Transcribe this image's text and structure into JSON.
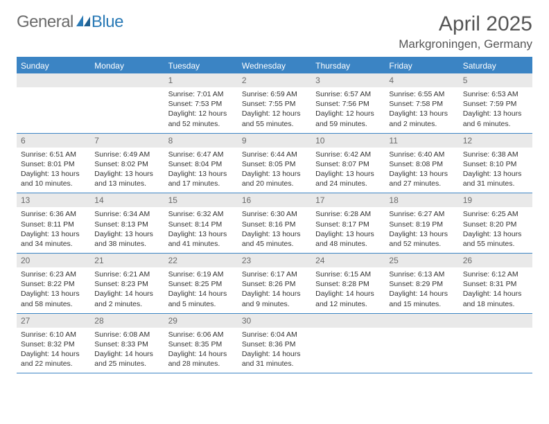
{
  "logo": {
    "text_general": "General",
    "text_blue": "Blue"
  },
  "header": {
    "month": "April 2025",
    "location": "Markgroningen, Germany"
  },
  "colors": {
    "header_blue": "#3b84c4",
    "daynum_bg": "#e9e9e9",
    "text": "#333333",
    "logo_blue": "#2a7ab6",
    "logo_gray": "#6a6a6a"
  },
  "weekdays": [
    "Sunday",
    "Monday",
    "Tuesday",
    "Wednesday",
    "Thursday",
    "Friday",
    "Saturday"
  ],
  "weeks": [
    [
      {
        "blank": true
      },
      {
        "blank": true
      },
      {
        "day": "1",
        "sunrise": "Sunrise: 7:01 AM",
        "sunset": "Sunset: 7:53 PM",
        "daylight1": "Daylight: 12 hours",
        "daylight2": "and 52 minutes."
      },
      {
        "day": "2",
        "sunrise": "Sunrise: 6:59 AM",
        "sunset": "Sunset: 7:55 PM",
        "daylight1": "Daylight: 12 hours",
        "daylight2": "and 55 minutes."
      },
      {
        "day": "3",
        "sunrise": "Sunrise: 6:57 AM",
        "sunset": "Sunset: 7:56 PM",
        "daylight1": "Daylight: 12 hours",
        "daylight2": "and 59 minutes."
      },
      {
        "day": "4",
        "sunrise": "Sunrise: 6:55 AM",
        "sunset": "Sunset: 7:58 PM",
        "daylight1": "Daylight: 13 hours",
        "daylight2": "and 2 minutes."
      },
      {
        "day": "5",
        "sunrise": "Sunrise: 6:53 AM",
        "sunset": "Sunset: 7:59 PM",
        "daylight1": "Daylight: 13 hours",
        "daylight2": "and 6 minutes."
      }
    ],
    [
      {
        "day": "6",
        "sunrise": "Sunrise: 6:51 AM",
        "sunset": "Sunset: 8:01 PM",
        "daylight1": "Daylight: 13 hours",
        "daylight2": "and 10 minutes."
      },
      {
        "day": "7",
        "sunrise": "Sunrise: 6:49 AM",
        "sunset": "Sunset: 8:02 PM",
        "daylight1": "Daylight: 13 hours",
        "daylight2": "and 13 minutes."
      },
      {
        "day": "8",
        "sunrise": "Sunrise: 6:47 AM",
        "sunset": "Sunset: 8:04 PM",
        "daylight1": "Daylight: 13 hours",
        "daylight2": "and 17 minutes."
      },
      {
        "day": "9",
        "sunrise": "Sunrise: 6:44 AM",
        "sunset": "Sunset: 8:05 PM",
        "daylight1": "Daylight: 13 hours",
        "daylight2": "and 20 minutes."
      },
      {
        "day": "10",
        "sunrise": "Sunrise: 6:42 AM",
        "sunset": "Sunset: 8:07 PM",
        "daylight1": "Daylight: 13 hours",
        "daylight2": "and 24 minutes."
      },
      {
        "day": "11",
        "sunrise": "Sunrise: 6:40 AM",
        "sunset": "Sunset: 8:08 PM",
        "daylight1": "Daylight: 13 hours",
        "daylight2": "and 27 minutes."
      },
      {
        "day": "12",
        "sunrise": "Sunrise: 6:38 AM",
        "sunset": "Sunset: 8:10 PM",
        "daylight1": "Daylight: 13 hours",
        "daylight2": "and 31 minutes."
      }
    ],
    [
      {
        "day": "13",
        "sunrise": "Sunrise: 6:36 AM",
        "sunset": "Sunset: 8:11 PM",
        "daylight1": "Daylight: 13 hours",
        "daylight2": "and 34 minutes."
      },
      {
        "day": "14",
        "sunrise": "Sunrise: 6:34 AM",
        "sunset": "Sunset: 8:13 PM",
        "daylight1": "Daylight: 13 hours",
        "daylight2": "and 38 minutes."
      },
      {
        "day": "15",
        "sunrise": "Sunrise: 6:32 AM",
        "sunset": "Sunset: 8:14 PM",
        "daylight1": "Daylight: 13 hours",
        "daylight2": "and 41 minutes."
      },
      {
        "day": "16",
        "sunrise": "Sunrise: 6:30 AM",
        "sunset": "Sunset: 8:16 PM",
        "daylight1": "Daylight: 13 hours",
        "daylight2": "and 45 minutes."
      },
      {
        "day": "17",
        "sunrise": "Sunrise: 6:28 AM",
        "sunset": "Sunset: 8:17 PM",
        "daylight1": "Daylight: 13 hours",
        "daylight2": "and 48 minutes."
      },
      {
        "day": "18",
        "sunrise": "Sunrise: 6:27 AM",
        "sunset": "Sunset: 8:19 PM",
        "daylight1": "Daylight: 13 hours",
        "daylight2": "and 52 minutes."
      },
      {
        "day": "19",
        "sunrise": "Sunrise: 6:25 AM",
        "sunset": "Sunset: 8:20 PM",
        "daylight1": "Daylight: 13 hours",
        "daylight2": "and 55 minutes."
      }
    ],
    [
      {
        "day": "20",
        "sunrise": "Sunrise: 6:23 AM",
        "sunset": "Sunset: 8:22 PM",
        "daylight1": "Daylight: 13 hours",
        "daylight2": "and 58 minutes."
      },
      {
        "day": "21",
        "sunrise": "Sunrise: 6:21 AM",
        "sunset": "Sunset: 8:23 PM",
        "daylight1": "Daylight: 14 hours",
        "daylight2": "and 2 minutes."
      },
      {
        "day": "22",
        "sunrise": "Sunrise: 6:19 AM",
        "sunset": "Sunset: 8:25 PM",
        "daylight1": "Daylight: 14 hours",
        "daylight2": "and 5 minutes."
      },
      {
        "day": "23",
        "sunrise": "Sunrise: 6:17 AM",
        "sunset": "Sunset: 8:26 PM",
        "daylight1": "Daylight: 14 hours",
        "daylight2": "and 9 minutes."
      },
      {
        "day": "24",
        "sunrise": "Sunrise: 6:15 AM",
        "sunset": "Sunset: 8:28 PM",
        "daylight1": "Daylight: 14 hours",
        "daylight2": "and 12 minutes."
      },
      {
        "day": "25",
        "sunrise": "Sunrise: 6:13 AM",
        "sunset": "Sunset: 8:29 PM",
        "daylight1": "Daylight: 14 hours",
        "daylight2": "and 15 minutes."
      },
      {
        "day": "26",
        "sunrise": "Sunrise: 6:12 AM",
        "sunset": "Sunset: 8:31 PM",
        "daylight1": "Daylight: 14 hours",
        "daylight2": "and 18 minutes."
      }
    ],
    [
      {
        "day": "27",
        "sunrise": "Sunrise: 6:10 AM",
        "sunset": "Sunset: 8:32 PM",
        "daylight1": "Daylight: 14 hours",
        "daylight2": "and 22 minutes."
      },
      {
        "day": "28",
        "sunrise": "Sunrise: 6:08 AM",
        "sunset": "Sunset: 8:33 PM",
        "daylight1": "Daylight: 14 hours",
        "daylight2": "and 25 minutes."
      },
      {
        "day": "29",
        "sunrise": "Sunrise: 6:06 AM",
        "sunset": "Sunset: 8:35 PM",
        "daylight1": "Daylight: 14 hours",
        "daylight2": "and 28 minutes."
      },
      {
        "day": "30",
        "sunrise": "Sunrise: 6:04 AM",
        "sunset": "Sunset: 8:36 PM",
        "daylight1": "Daylight: 14 hours",
        "daylight2": "and 31 minutes."
      },
      {
        "blank": true
      },
      {
        "blank": true
      },
      {
        "blank": true
      }
    ]
  ]
}
